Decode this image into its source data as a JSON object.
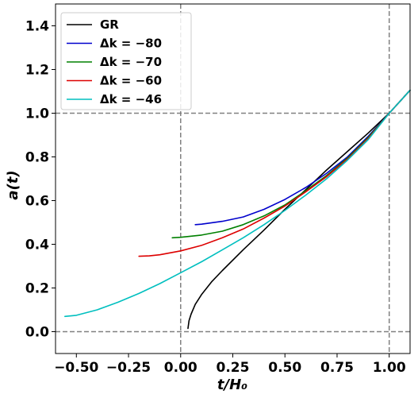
{
  "chart_data": {
    "type": "line",
    "xlabel": "t/H₀",
    "ylabel": "a(t)",
    "xlim": [
      -0.6,
      1.1
    ],
    "ylim": [
      -0.1,
      1.5
    ],
    "xticks": [
      -0.5,
      -0.25,
      0.0,
      0.25,
      0.5,
      0.75,
      1.0
    ],
    "xtick_labels": [
      "−0.50",
      "−0.25",
      "0.00",
      "0.25",
      "0.50",
      "0.75",
      "1.00"
    ],
    "yticks": [
      0.0,
      0.2,
      0.4,
      0.6,
      0.8,
      1.0,
      1.2,
      1.4
    ],
    "ytick_labels": [
      "0.0",
      "0.2",
      "0.4",
      "0.6",
      "0.8",
      "1.0",
      "1.2",
      "1.4"
    ],
    "reference_lines": {
      "vertical": [
        0.0,
        1.0
      ],
      "horizontal": [
        0.0,
        1.0
      ],
      "style": "dashed",
      "color": "#808080"
    },
    "legend_position": "top-left",
    "grid": false,
    "series": [
      {
        "name": "GR",
        "color": "#000000",
        "x": [
          0.035,
          0.04,
          0.05,
          0.07,
          0.1,
          0.15,
          0.2,
          0.3,
          0.4,
          0.5,
          0.6,
          0.7,
          0.8,
          0.9,
          1.0,
          1.1
        ],
        "y": [
          0.015,
          0.05,
          0.08,
          0.125,
          0.17,
          0.23,
          0.28,
          0.375,
          0.465,
          0.56,
          0.65,
          0.74,
          0.825,
          0.91,
          1.0,
          1.105
        ]
      },
      {
        "name": "Δk = −80",
        "color": "#0000cc",
        "x": [
          0.07,
          0.1,
          0.2,
          0.3,
          0.4,
          0.5,
          0.6,
          0.7,
          0.8,
          0.9,
          1.0,
          1.1
        ],
        "y": [
          0.49,
          0.492,
          0.505,
          0.525,
          0.56,
          0.605,
          0.66,
          0.725,
          0.8,
          0.895,
          1.0,
          1.105
        ]
      },
      {
        "name": "Δk = −70",
        "color": "#008000",
        "x": [
          -0.04,
          0.0,
          0.1,
          0.2,
          0.3,
          0.4,
          0.5,
          0.6,
          0.7,
          0.8,
          0.9,
          1.0,
          1.1
        ],
        "y": [
          0.43,
          0.432,
          0.442,
          0.46,
          0.49,
          0.53,
          0.58,
          0.645,
          0.715,
          0.795,
          0.89,
          1.0,
          1.105
        ]
      },
      {
        "name": "Δk = −60",
        "color": "#dd0000",
        "x": [
          -0.2,
          -0.15,
          -0.1,
          0.0,
          0.1,
          0.2,
          0.3,
          0.4,
          0.5,
          0.6,
          0.7,
          0.8,
          0.9,
          1.0,
          1.1
        ],
        "y": [
          0.345,
          0.347,
          0.352,
          0.37,
          0.395,
          0.43,
          0.47,
          0.52,
          0.575,
          0.64,
          0.71,
          0.79,
          0.885,
          1.0,
          1.105
        ]
      },
      {
        "name": "Δk = −46",
        "color": "#00bfbf",
        "x": [
          -0.555,
          -0.5,
          -0.4,
          -0.3,
          -0.2,
          -0.1,
          0.0,
          0.1,
          0.2,
          0.3,
          0.4,
          0.5,
          0.6,
          0.7,
          0.8,
          0.9,
          1.0,
          1.1
        ],
        "y": [
          0.07,
          0.075,
          0.1,
          0.135,
          0.175,
          0.22,
          0.27,
          0.32,
          0.375,
          0.43,
          0.49,
          0.555,
          0.625,
          0.7,
          0.785,
          0.88,
          1.0,
          1.105
        ]
      }
    ]
  }
}
